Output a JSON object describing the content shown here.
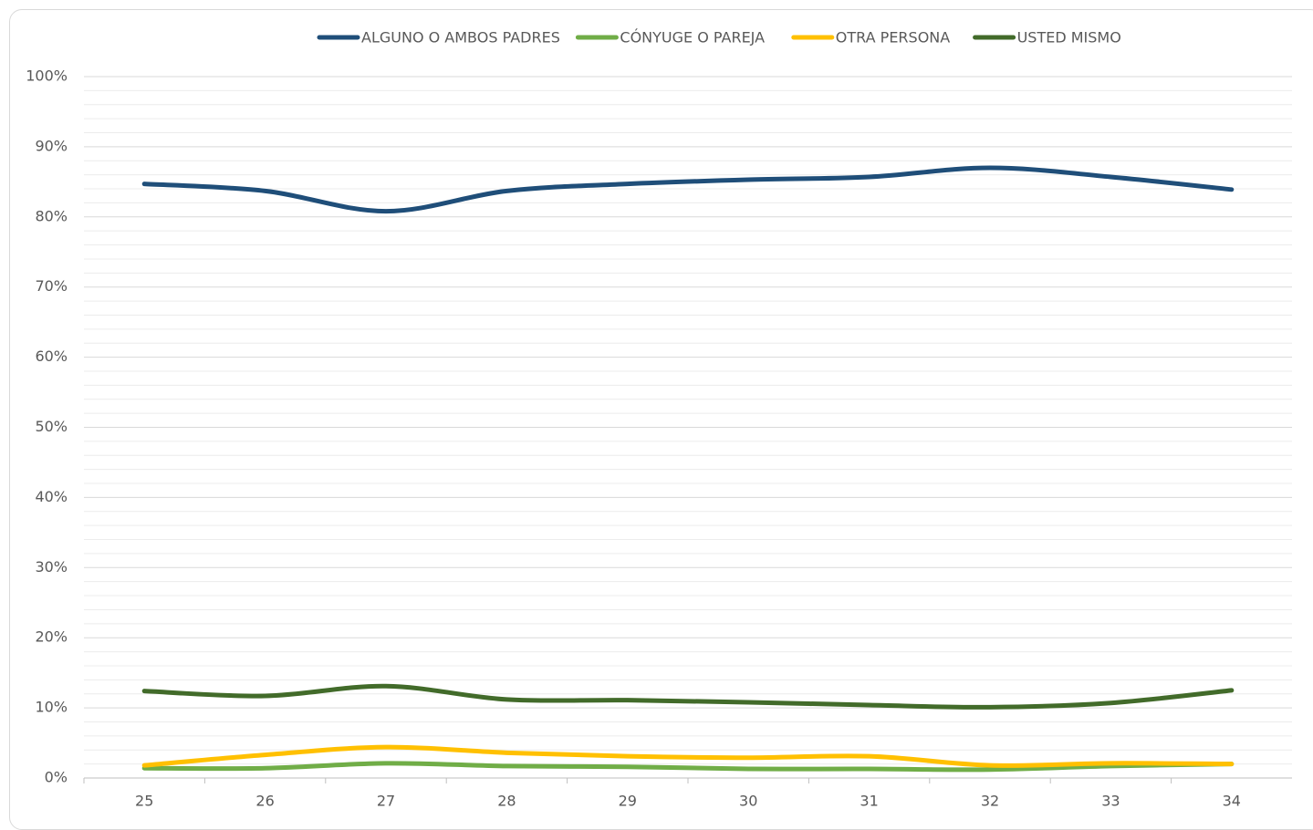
{
  "chart_data": {
    "type": "line",
    "categories": [
      "25",
      "26",
      "27",
      "28",
      "29",
      "30",
      "31",
      "32",
      "33",
      "34"
    ],
    "series": [
      {
        "name": "ALGUNO O AMBOS PADRES",
        "color": "#1f4e79",
        "values": [
          84.7,
          83.7,
          80.8,
          83.7,
          84.7,
          85.3,
          85.7,
          87.0,
          85.7,
          83.9
        ]
      },
      {
        "name": "CÓNYUGE O PAREJA",
        "color": "#70ad47",
        "values": [
          1.4,
          1.4,
          2.1,
          1.7,
          1.6,
          1.3,
          1.3,
          1.2,
          1.7,
          2.0
        ]
      },
      {
        "name": "OTRA PERSONA",
        "color": "#ffc000",
        "values": [
          1.8,
          3.3,
          4.4,
          3.6,
          3.1,
          2.9,
          3.1,
          1.8,
          2.1,
          2.0
        ]
      },
      {
        "name": "USTED MISMO",
        "color": "#426b2a",
        "values": [
          12.4,
          11.7,
          13.1,
          11.2,
          11.1,
          10.8,
          10.4,
          10.1,
          10.7,
          12.5
        ]
      }
    ],
    "ylim": [
      0,
      100
    ],
    "yticks": [
      {
        "value": 0,
        "label": "0%"
      },
      {
        "value": 10,
        "label": "10%"
      },
      {
        "value": 20,
        "label": "20%"
      },
      {
        "value": 30,
        "label": "30%"
      },
      {
        "value": 40,
        "label": "40%"
      },
      {
        "value": 50,
        "label": "50%"
      },
      {
        "value": 60,
        "label": "60%"
      },
      {
        "value": 70,
        "label": "70%"
      },
      {
        "value": 80,
        "label": "80%"
      },
      {
        "value": 90,
        "label": "90%"
      },
      {
        "value": 100,
        "label": "100%"
      }
    ],
    "minor_yticks": [
      2,
      4,
      6,
      8,
      12,
      14,
      16,
      18,
      22,
      24,
      26,
      28,
      32,
      34,
      36,
      38,
      42,
      44,
      46,
      48,
      52,
      54,
      56,
      58,
      62,
      64,
      66,
      68,
      72,
      74,
      76,
      78,
      82,
      84,
      86,
      88,
      92,
      94,
      96,
      98
    ],
    "grid": true,
    "legend": "top",
    "smooth": true
  }
}
